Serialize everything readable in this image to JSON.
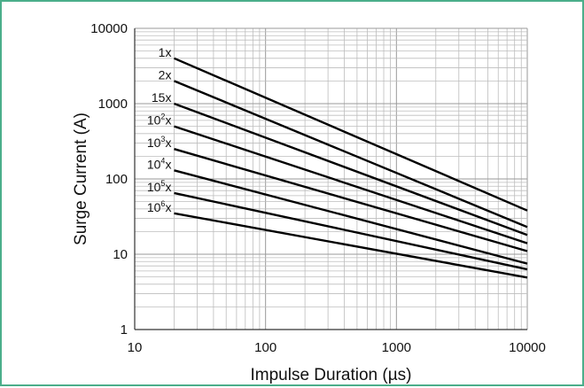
{
  "colors": {
    "frame": "#4bae8a",
    "grid": "#bdbdbd",
    "axis": "#333333",
    "line": "#000000"
  },
  "chart_data": {
    "type": "line",
    "title": "",
    "xlabel": "Impulse Duration (µs)",
    "ylabel": "Surge Current (A)",
    "xscale": "log",
    "yscale": "log",
    "xlim": [
      10,
      10000
    ],
    "ylim": [
      1,
      10000
    ],
    "xticks": [
      "10",
      "100",
      "1000",
      "10000"
    ],
    "yticks": [
      "1",
      "10",
      "100",
      "1000",
      "10000"
    ],
    "grid": true,
    "legend": "none",
    "series": [
      {
        "name": "1x",
        "label_base": "1",
        "label_exp": "",
        "x": [
          20,
          10000
        ],
        "y": [
          4000,
          38
        ]
      },
      {
        "name": "2x",
        "label_base": "2",
        "label_exp": "",
        "x": [
          20,
          10000
        ],
        "y": [
          2000,
          23
        ]
      },
      {
        "name": "15x",
        "label_base": "15",
        "label_exp": "",
        "x": [
          20,
          10000
        ],
        "y": [
          1000,
          18
        ]
      },
      {
        "name": "10²x",
        "label_base": "10",
        "label_exp": "2",
        "x": [
          20,
          10000
        ],
        "y": [
          500,
          14
        ]
      },
      {
        "name": "10³x",
        "label_base": "10",
        "label_exp": "3",
        "x": [
          20,
          10000
        ],
        "y": [
          250,
          11
        ]
      },
      {
        "name": "10⁴x",
        "label_base": "10",
        "label_exp": "4",
        "x": [
          20,
          10000
        ],
        "y": [
          130,
          7.5
        ]
      },
      {
        "name": "10⁵x",
        "label_base": "10",
        "label_exp": "5",
        "x": [
          20,
          10000
        ],
        "y": [
          65,
          6.3
        ]
      },
      {
        "name": "10⁶x",
        "label_base": "10",
        "label_exp": "6",
        "x": [
          20,
          10000
        ],
        "y": [
          35,
          4.9
        ]
      }
    ]
  }
}
